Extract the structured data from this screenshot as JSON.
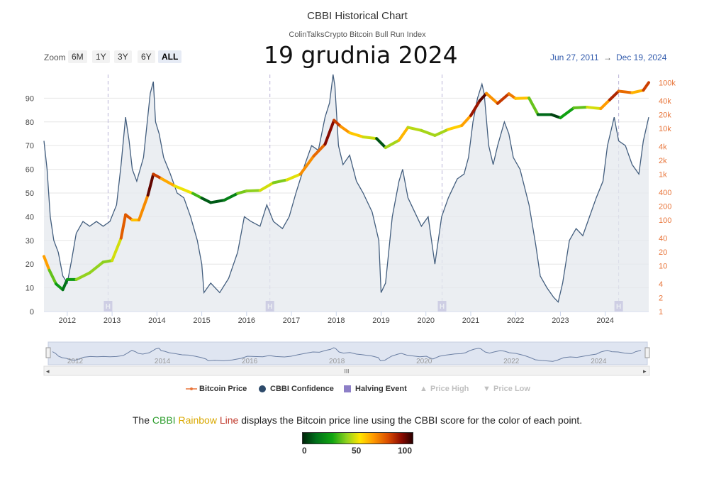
{
  "header": {
    "title": "CBBI Historical Chart",
    "subtitle": "ColinTalksCrypto Bitcoin Bull Run Index",
    "date_overlay": "19 grudnia 2024"
  },
  "zoom": {
    "label": "Zoom",
    "buttons": [
      "6M",
      "1Y",
      "3Y",
      "6Y",
      "ALL"
    ],
    "active": "ALL"
  },
  "range": {
    "from": "Jun 27, 2011",
    "arrow": "→",
    "to": "Dec 19, 2024"
  },
  "legend": {
    "bitcoin_price": "Bitcoin Price",
    "cbbi_confidence": "CBBI Confidence",
    "halving_event": "Halving Event",
    "price_high": "Price High",
    "price_low": "Price Low"
  },
  "caption": {
    "pre": "The ",
    "cbbi": "CBBI ",
    "rainbow": "Rainbow ",
    "line": "Line",
    "post": " displays the Bitcoin price line using the CBBI score for the color of each point."
  },
  "colorbar": {
    "ticks": [
      "0",
      "50",
      "100"
    ],
    "colors": [
      "#00240a",
      "#006f1a",
      "#11a511",
      "#8fd11f",
      "#ffe600",
      "#ff9b00",
      "#d94a00",
      "#8b0a00",
      "#2a0000"
    ]
  },
  "navigator": {
    "years": [
      "2012",
      "2014",
      "2016",
      "2018",
      "2020",
      "2022",
      "2024"
    ],
    "handle_label": "III"
  },
  "chart_data": {
    "type": "line",
    "x_range": [
      2011.48,
      2024.97
    ],
    "left_axis": {
      "ticks": [
        0,
        10,
        20,
        30,
        40,
        50,
        60,
        70,
        80,
        90
      ],
      "range": [
        0,
        100
      ]
    },
    "right_axis": {
      "scale": "log",
      "ticks": [
        "1",
        "2",
        "4",
        "10",
        "20",
        "40",
        "100",
        "200",
        "400",
        "1k",
        "2k",
        "4k",
        "10k",
        "20k",
        "40k",
        "100k"
      ],
      "range": [
        1,
        150000
      ]
    },
    "x_ticks": [
      "2012",
      "2013",
      "2014",
      "2015",
      "2016",
      "2017",
      "2018",
      "2019",
      "2020",
      "2021",
      "2022",
      "2023",
      "2024"
    ],
    "halving_label": "H",
    "halvings": [
      2012.91,
      2016.52,
      2020.36,
      2024.3
    ],
    "colors": {
      "confidence_line": "#435e7e",
      "area_fill": "#e4e8ee",
      "halving": "#8d7fc7",
      "price_axis": "#e8753a",
      "grid": "#e6e6e6"
    },
    "series": [
      {
        "name": "CBBI Confidence",
        "x": [
          2011.48,
          2011.55,
          2011.62,
          2011.7,
          2011.8,
          2011.9,
          2012.0,
          2012.1,
          2012.2,
          2012.35,
          2012.5,
          2012.65,
          2012.8,
          2012.95,
          2013.1,
          2013.2,
          2013.3,
          2013.38,
          2013.45,
          2013.55,
          2013.7,
          2013.85,
          2013.92,
          2013.97,
          2014.05,
          2014.15,
          2014.3,
          2014.45,
          2014.6,
          2014.75,
          2014.9,
          2015.0,
          2015.05,
          2015.2,
          2015.4,
          2015.6,
          2015.8,
          2015.95,
          2016.1,
          2016.3,
          2016.45,
          2016.6,
          2016.8,
          2016.95,
          2017.1,
          2017.3,
          2017.45,
          2017.6,
          2017.75,
          2017.85,
          2017.93,
          2017.97,
          2018.05,
          2018.15,
          2018.3,
          2018.45,
          2018.6,
          2018.8,
          2018.95,
          2019.0,
          2019.1,
          2019.25,
          2019.4,
          2019.48,
          2019.6,
          2019.75,
          2019.9,
          2020.05,
          2020.2,
          2020.35,
          2020.5,
          2020.7,
          2020.85,
          2020.95,
          2021.05,
          2021.15,
          2021.25,
          2021.3,
          2021.4,
          2021.5,
          2021.6,
          2021.75,
          2021.85,
          2021.95,
          2022.1,
          2022.3,
          2022.45,
          2022.55,
          2022.7,
          2022.85,
          2022.95,
          2023.05,
          2023.2,
          2023.35,
          2023.5,
          2023.65,
          2023.8,
          2023.95,
          2024.05,
          2024.2,
          2024.3,
          2024.45,
          2024.6,
          2024.75,
          2024.85,
          2024.97
        ],
        "values": [
          72,
          60,
          40,
          30,
          25,
          15,
          12,
          22,
          33,
          38,
          36,
          38,
          36,
          38,
          45,
          62,
          82,
          72,
          60,
          55,
          65,
          92,
          97,
          80,
          75,
          65,
          58,
          50,
          48,
          40,
          30,
          20,
          8,
          12,
          8,
          14,
          25,
          40,
          38,
          36,
          45,
          38,
          35,
          40,
          50,
          62,
          70,
          68,
          82,
          88,
          100,
          95,
          70,
          62,
          66,
          55,
          50,
          42,
          30,
          8,
          12,
          40,
          55,
          60,
          48,
          42,
          36,
          40,
          20,
          40,
          48,
          56,
          58,
          65,
          80,
          90,
          96,
          92,
          70,
          62,
          70,
          80,
          75,
          65,
          60,
          45,
          28,
          15,
          10,
          6,
          4,
          12,
          30,
          35,
          32,
          40,
          48,
          55,
          70,
          82,
          72,
          70,
          62,
          58,
          72,
          82
        ]
      },
      {
        "name": "Bitcoin Price",
        "axis": "right",
        "x": [
          2011.48,
          2011.6,
          2011.75,
          2011.9,
          2012.0,
          2012.2,
          2012.5,
          2012.8,
          2013.0,
          2013.2,
          2013.3,
          2013.45,
          2013.6,
          2013.8,
          2013.92,
          2014.1,
          2014.4,
          2014.8,
          2015.0,
          2015.2,
          2015.5,
          2015.8,
          2016.0,
          2016.3,
          2016.6,
          2016.9,
          2017.2,
          2017.5,
          2017.75,
          2017.95,
          2018.1,
          2018.3,
          2018.6,
          2018.9,
          2019.1,
          2019.4,
          2019.6,
          2019.9,
          2020.2,
          2020.5,
          2020.8,
          2021.0,
          2021.2,
          2021.35,
          2021.6,
          2021.85,
          2022.0,
          2022.3,
          2022.5,
          2022.8,
          2023.0,
          2023.3,
          2023.6,
          2023.9,
          2024.1,
          2024.3,
          2024.6,
          2024.85,
          2024.97
        ],
        "values": [
          16,
          8,
          4,
          3,
          5,
          5,
          7,
          12,
          13,
          40,
          130,
          100,
          100,
          350,
          1000,
          800,
          550,
          380,
          300,
          240,
          270,
          380,
          430,
          440,
          650,
          750,
          1000,
          2500,
          4500,
          15000,
          11000,
          8000,
          6500,
          6000,
          3800,
          5500,
          10500,
          9000,
          7000,
          9500,
          11500,
          19000,
          40000,
          58000,
          35000,
          57000,
          45000,
          46000,
          20000,
          20000,
          17000,
          28000,
          29000,
          27000,
          42000,
          65000,
          60000,
          68000,
          100000
        ]
      }
    ]
  }
}
